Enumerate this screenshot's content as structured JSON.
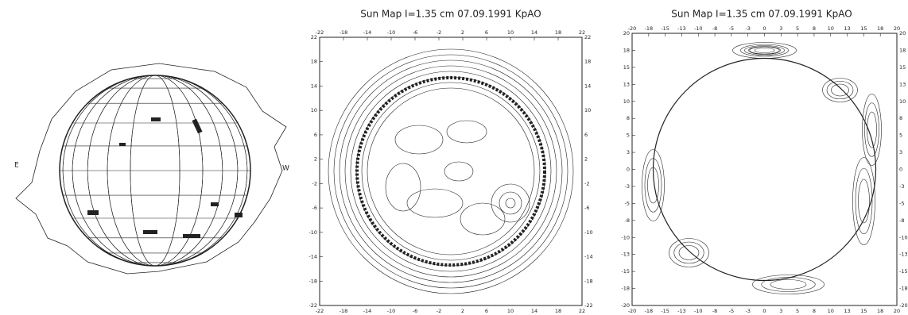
{
  "panels": [
    {
      "labels": [
        "E",
        "W"
      ]
    },
    {
      "title": "Sun Map   I=1.35 cm   07.09.1991   KpAO",
      "xticks": [
        "-22",
        "-18",
        "-14",
        "-10",
        "-6",
        "-2",
        "2",
        "6",
        "10",
        "14",
        "18",
        "22"
      ],
      "yticks": [
        "22",
        "18",
        "14",
        "10",
        "6",
        "2",
        "-2",
        "-6",
        "-10",
        "-14",
        "-18",
        "-22"
      ]
    },
    {
      "title": "Sun Map   I=1.35 cm   07.09.1991   KpAO",
      "xticks": [
        "-20",
        "-18",
        "-15",
        "-13",
        "-10",
        "-8",
        "-5",
        "-3",
        "0",
        "3",
        "5",
        "8",
        "10",
        "13",
        "15",
        "18",
        "20"
      ],
      "yticks": [
        "20",
        "18",
        "15",
        "13",
        "10",
        "8",
        "5",
        "3",
        "0",
        "-3",
        "-5",
        "-8",
        "-10",
        "-13",
        "-15",
        "-18",
        "-20"
      ]
    }
  ]
}
